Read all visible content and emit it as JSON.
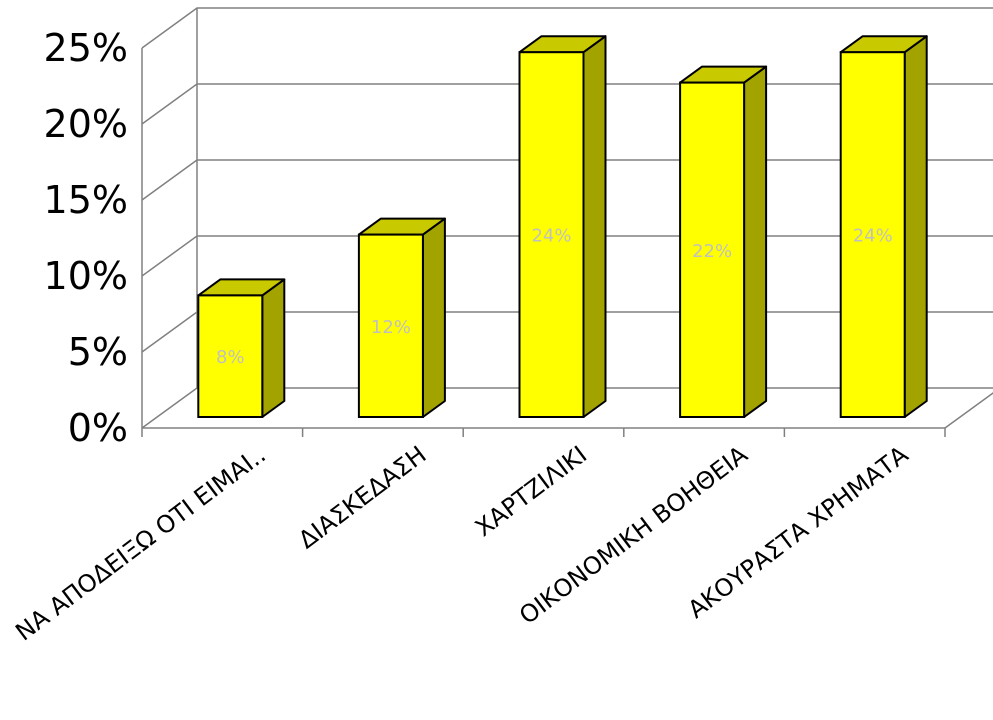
{
  "chart_data": {
    "type": "bar",
    "title": "",
    "xlabel": "",
    "ylabel": "",
    "categories": [
      "ΝΑ ΑΠΟΔΕΙΞΩ ΟΤΙ ΕΙΜΑΙ..",
      "ΔΙΑΣΚΕΔΑΣΗ",
      "ΧΑΡΤΖΙΛΙΚΙ",
      "ΟΙΚΟΝΟΜΙΚΗ ΒΟΗΘΕΙΑ",
      "ΑΚΟΥΡΑΣΤΑ ΧΡΗΜΑΤΑ"
    ],
    "values": [
      8,
      12,
      24,
      22,
      24
    ],
    "data_labels": [
      "8%",
      "12%",
      "24%",
      "22%",
      "24%"
    ],
    "y_ticks": [
      0,
      5,
      10,
      15,
      20,
      25
    ],
    "y_tick_labels": [
      "0%",
      "5%",
      "10%",
      "15%",
      "20%",
      "25%"
    ],
    "ylim": [
      0,
      25
    ],
    "grid": true,
    "legend": "none",
    "style": "3d-column",
    "colors": {
      "bar_front": "#ffff00",
      "bar_side": "#a3a300",
      "bar_top": "#c9c900",
      "bar_outline": "#000000",
      "grid": "#808080",
      "data_label": "#c0c0c0"
    }
  }
}
